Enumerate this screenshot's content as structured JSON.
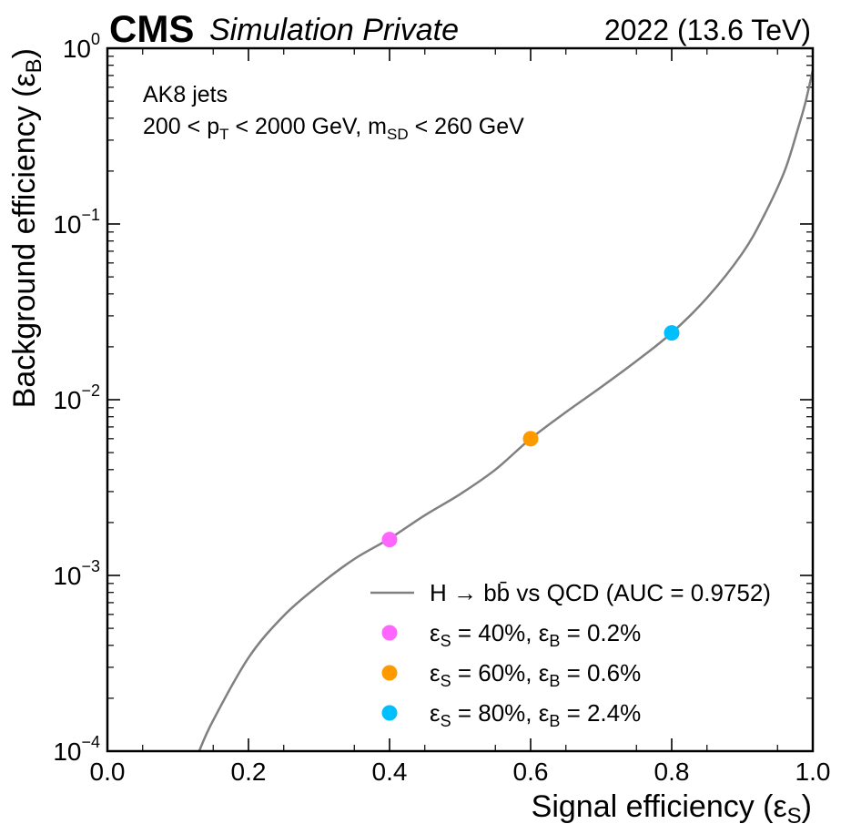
{
  "header": {
    "experiment": "CMS",
    "status": "Simulation Private",
    "lumi": "2022 (13.6 TeV)"
  },
  "annotation": {
    "line1": "AK8 jets",
    "cut_a": "200 < p",
    "cut_a_sub": "T",
    "cut_b": " < 2000 GeV, m",
    "cut_b_sub": "SD",
    "cut_c": " < 260 GeV"
  },
  "colors": {
    "roc": "#808080",
    "wp40": "#ff66ff",
    "wp60": "#ff9900",
    "wp80": "#00bfff"
  },
  "chart_data": {
    "type": "line",
    "xlabel": "Signal efficiency (ε",
    "xlabel_sub": "S",
    "xlabel_end": ")",
    "ylabel": "Background efficiency (ε",
    "ylabel_sub": "B",
    "ylabel_end": ")",
    "xlim": [
      0.0,
      1.0
    ],
    "ylim": [
      0.0001,
      1.0
    ],
    "yscale": "log",
    "x_ticks": [
      "0.0",
      "0.2",
      "0.4",
      "0.6",
      "0.8",
      "1.0"
    ],
    "y_ticks": [
      {
        "base": "10",
        "exp": "−4",
        "value": 0.0001
      },
      {
        "base": "10",
        "exp": "−3",
        "value": 0.001
      },
      {
        "base": "10",
        "exp": "−2",
        "value": 0.01
      },
      {
        "base": "10",
        "exp": "−1",
        "value": 0.1
      },
      {
        "base": "10",
        "exp": "0",
        "value": 1
      }
    ],
    "grid": false,
    "legend_position": "bottom-right",
    "series": [
      {
        "name": "H → bb̄ vs QCD (AUC = 0.9752)",
        "x": [
          0.13,
          0.15,
          0.2,
          0.25,
          0.3,
          0.35,
          0.4,
          0.45,
          0.5,
          0.55,
          0.6,
          0.65,
          0.7,
          0.75,
          0.8,
          0.85,
          0.9,
          0.93,
          0.96,
          0.98,
          0.99,
          1.0
        ],
        "y": [
          0.0001,
          0.00015,
          0.00034,
          0.00059,
          0.00088,
          0.00124,
          0.00162,
          0.0022,
          0.0029,
          0.004,
          0.006,
          0.0085,
          0.0118,
          0.0166,
          0.024,
          0.038,
          0.068,
          0.11,
          0.2,
          0.36,
          0.5,
          0.75
        ]
      }
    ],
    "working_points": [
      {
        "label_a": "ε",
        "label_a_sub": "S",
        "label_b": " = 40%, ε",
        "label_b_sub": "B",
        "label_c": " = 0.2%",
        "x": 0.4,
        "y": 0.0016,
        "color": "#ff66ff"
      },
      {
        "label_a": "ε",
        "label_a_sub": "S",
        "label_b": " = 60%, ε",
        "label_b_sub": "B",
        "label_c": " = 0.6%",
        "x": 0.6,
        "y": 0.006,
        "color": "#ff9900"
      },
      {
        "label_a": "ε",
        "label_a_sub": "S",
        "label_b": " = 80%, ε",
        "label_b_sub": "B",
        "label_c": " = 2.4%",
        "x": 0.8,
        "y": 0.024,
        "color": "#00bfff"
      }
    ]
  }
}
